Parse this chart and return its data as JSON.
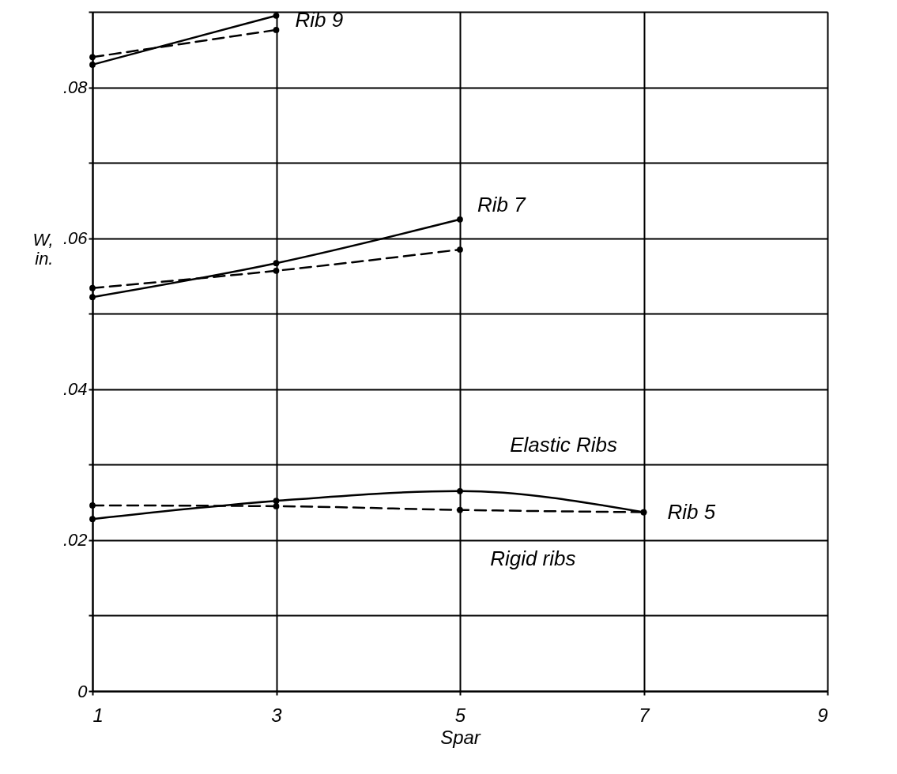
{
  "chart_data": {
    "type": "line",
    "xlabel": "Spar",
    "ylabel": "W, in.",
    "xlim": [
      1,
      9
    ],
    "xticks": [
      1,
      3,
      5,
      7,
      9
    ],
    "ylim": [
      0,
      0.09
    ],
    "yticks": [
      {
        "value": 0,
        "label": "0"
      },
      {
        "value": 0.01,
        "label": null
      },
      {
        "value": 0.02,
        "label": ".02"
      },
      {
        "value": 0.03,
        "label": null
      },
      {
        "value": 0.04,
        "label": ".04"
      },
      {
        "value": 0.05,
        "label": null
      },
      {
        "value": 0.06,
        "label": ".06"
      },
      {
        "value": 0.07,
        "label": null
      },
      {
        "value": 0.08,
        "label": ".08"
      },
      {
        "value": 0.09,
        "label": null
      }
    ],
    "grid": true,
    "marker": "circle",
    "series": [
      {
        "color": "#000000",
        "line_style": "solid",
        "x": [
          1,
          3
        ],
        "values": [
          0.083,
          0.0895
        ]
      },
      {
        "color": "#000000",
        "line_style": "dashed",
        "x": [
          1,
          3
        ],
        "values": [
          0.084,
          0.0876
        ]
      },
      {
        "color": "#000000",
        "line_style": "solid",
        "x": [
          1,
          3,
          5
        ],
        "values": [
          0.0522,
          0.0567,
          0.0625
        ]
      },
      {
        "color": "#000000",
        "line_style": "dashed",
        "x": [
          1,
          3,
          5
        ],
        "values": [
          0.0534,
          0.0557,
          0.0585
        ]
      },
      {
        "color": "#000000",
        "line_style": "solid",
        "x": [
          1,
          3,
          5,
          7
        ],
        "values": [
          0.0228,
          0.0252,
          0.0265,
          0.0237
        ]
      },
      {
        "color": "#000000",
        "line_style": "dashed",
        "x": [
          1,
          3,
          5,
          7
        ],
        "values": [
          0.0246,
          0.0245,
          0.024,
          0.0237
        ]
      }
    ],
    "annotations": [
      {
        "text": "Rib 9",
        "x": 3,
        "y": 0.0876
      },
      {
        "text": "Rib 7",
        "x": 5,
        "y": 0.0625
      },
      {
        "text": "Rib 5",
        "x": 7,
        "y": 0.0237
      },
      {
        "text": "Elastic Ribs",
        "x": 5.2,
        "y": 0.0265
      },
      {
        "text": "Rigid ribs",
        "x": 5.5,
        "y": 0.024
      }
    ]
  }
}
